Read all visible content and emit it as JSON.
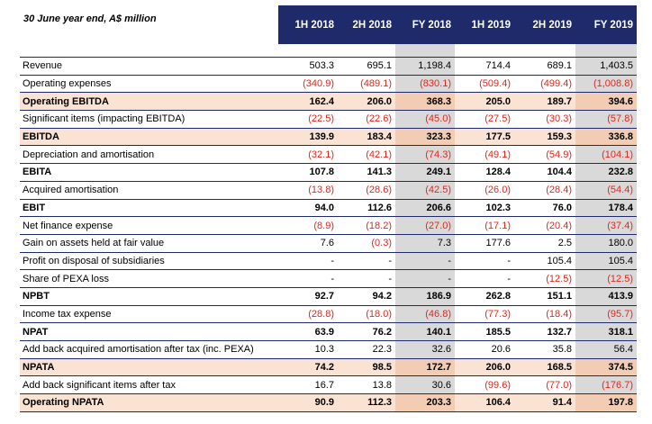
{
  "table": {
    "header_label": "30 June year end, A$ million",
    "columns": [
      "1H 2018",
      "2H 2018",
      "FY 2018",
      "1H 2019",
      "2H 2019",
      "FY 2019"
    ],
    "rows": [
      {
        "label": "Revenue",
        "style": "normal",
        "values": [
          "503.3",
          "695.1",
          "1,198.4",
          "714.4",
          "689.1",
          "1,403.5"
        ]
      },
      {
        "label": "Operating expenses",
        "style": "normal",
        "values": [
          "(340.9)",
          "(489.1)",
          "(830.1)",
          "(509.4)",
          "(499.4)",
          "(1,008.8)"
        ]
      },
      {
        "label": "Operating EBITDA",
        "style": "highlight",
        "values": [
          "162.4",
          "206.0",
          "368.3",
          "205.0",
          "189.7",
          "394.6"
        ]
      },
      {
        "label": "Significant items (impacting EBITDA)",
        "style": "normal",
        "values": [
          "(22.5)",
          "(22.6)",
          "(45.0)",
          "(27.5)",
          "(30.3)",
          "(57.8)"
        ]
      },
      {
        "label": "EBITDA",
        "style": "highlight",
        "values": [
          "139.9",
          "183.4",
          "323.3",
          "177.5",
          "159.3",
          "336.8"
        ]
      },
      {
        "label": "Depreciation and amortisation",
        "style": "normal",
        "values": [
          "(32.1)",
          "(42.1)",
          "(74.3)",
          "(49.1)",
          "(54.9)",
          "(104.1)"
        ]
      },
      {
        "label": "EBITA",
        "style": "bold",
        "values": [
          "107.8",
          "141.3",
          "249.1",
          "128.4",
          "104.4",
          "232.8"
        ]
      },
      {
        "label": "Acquired amortisation",
        "style": "normal",
        "values": [
          "(13.8)",
          "(28.6)",
          "(42.5)",
          "(26.0)",
          "(28.4)",
          "(54.4)"
        ]
      },
      {
        "label": "EBIT",
        "style": "bold",
        "values": [
          "94.0",
          "112.6",
          "206.6",
          "102.3",
          "76.0",
          "178.4"
        ]
      },
      {
        "label": "Net finance expense",
        "style": "normal",
        "values": [
          "(8.9)",
          "(18.2)",
          "(27.0)",
          "(17.1)",
          "(20.4)",
          "(37.4)"
        ]
      },
      {
        "label": "Gain on assets held at fair value",
        "style": "normal",
        "values": [
          "7.6",
          "(0.3)",
          "7.3",
          "177.6",
          "2.5",
          "180.0"
        ]
      },
      {
        "label": "Profit on disposal of subsidiaries",
        "style": "normal",
        "values": [
          "-",
          "-",
          "-",
          "-",
          "105.4",
          "105.4"
        ]
      },
      {
        "label": "Share of PEXA loss",
        "style": "normal",
        "values": [
          "-",
          "-",
          "-",
          "-",
          "(12.5)",
          "(12.5)"
        ]
      },
      {
        "label": "NPBT",
        "style": "bold",
        "values": [
          "92.7",
          "94.2",
          "186.9",
          "262.8",
          "151.1",
          "413.9"
        ]
      },
      {
        "label": "Income tax expense",
        "style": "normal",
        "values": [
          "(28.8)",
          "(18.0)",
          "(46.8)",
          "(77.3)",
          "(18.4)",
          "(95.7)"
        ]
      },
      {
        "label": "NPAT",
        "style": "bold",
        "values": [
          "63.9",
          "76.2",
          "140.1",
          "185.5",
          "132.7",
          "318.1"
        ]
      },
      {
        "label": "Add back acquired amortisation after tax (inc. PEXA)",
        "style": "normal",
        "values": [
          "10.3",
          "22.3",
          "32.6",
          "20.6",
          "35.8",
          "56.4"
        ]
      },
      {
        "label": "NPATA",
        "style": "highlight",
        "values": [
          "74.2",
          "98.5",
          "172.7",
          "206.0",
          "168.5",
          "374.5"
        ]
      },
      {
        "label": "Add back significant items after tax",
        "style": "normal",
        "values": [
          "16.7",
          "13.8",
          "30.6",
          "(99.6)",
          "(77.0)",
          "(176.7)"
        ]
      },
      {
        "label": "Operating NPATA",
        "style": "highlight",
        "values": [
          "90.9",
          "112.3",
          "203.3",
          "106.4",
          "91.4",
          "197.8"
        ]
      }
    ]
  },
  "colors": {
    "header_bg": "#1f2a6b",
    "negative": "#e3261c",
    "highlight": "#fbe3d4",
    "fy_shade": "#d9d9d9"
  }
}
